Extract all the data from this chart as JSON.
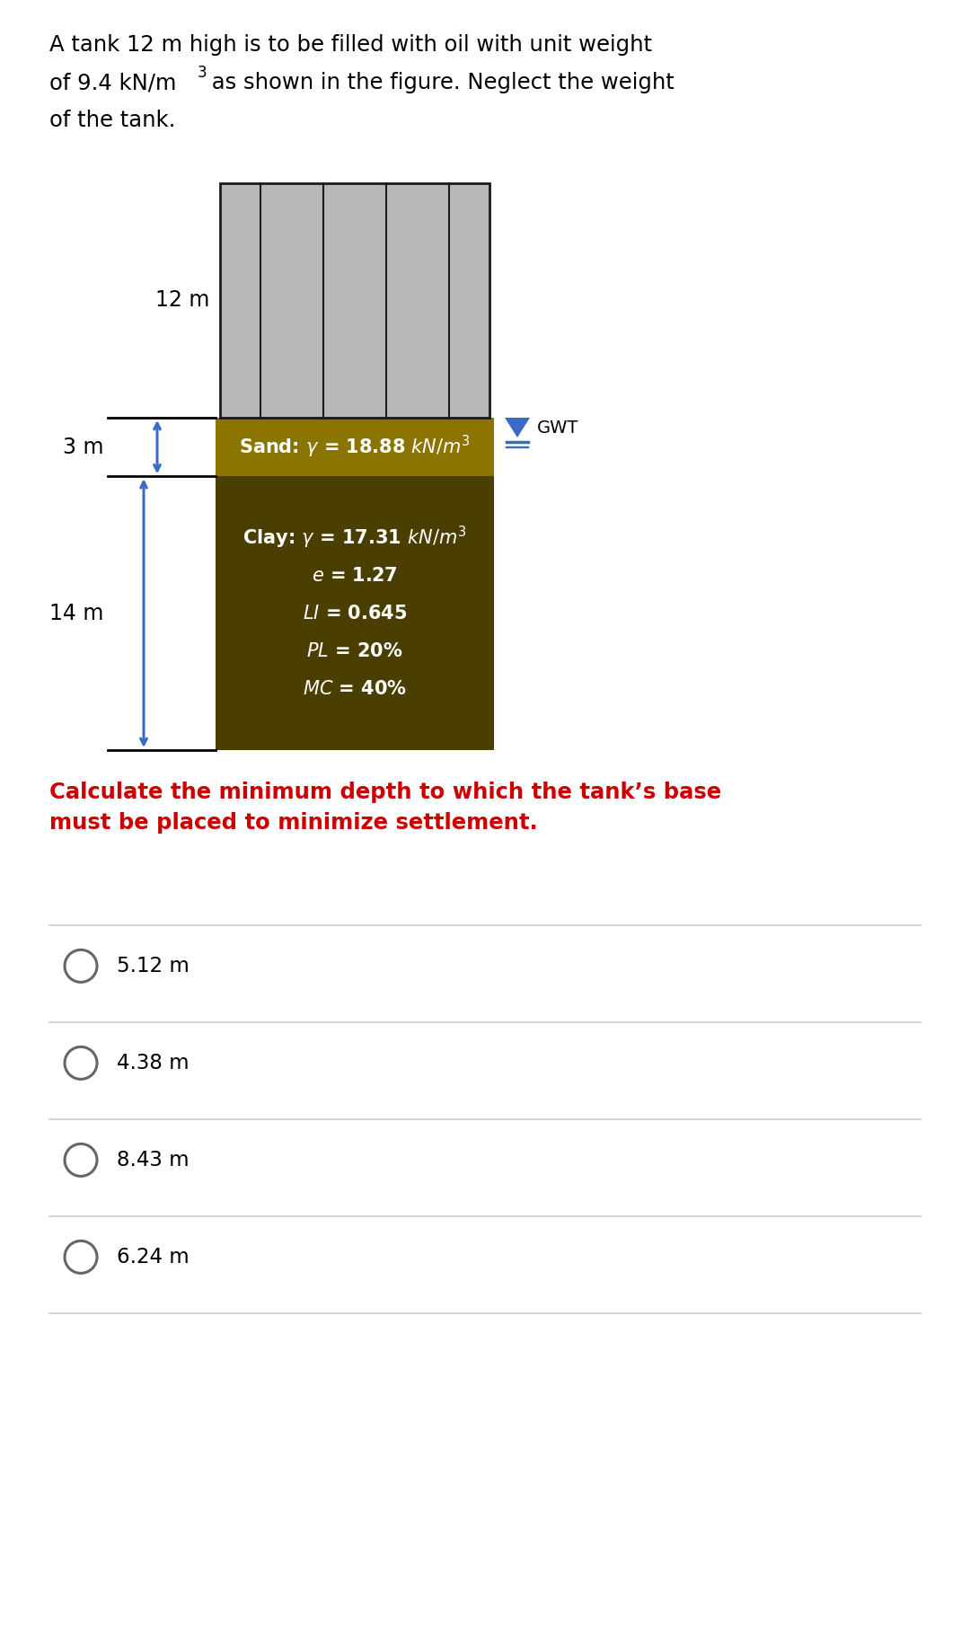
{
  "problem_text": "A tank 12 m high is to be filled with oil with unit weight\nof 9.4 kN/m³ as shown in the figure. Neglect the weight\nof the tank.",
  "question_text": "Calculate the minimum depth to which the tank’s base\nmust be placed to minimize settlement.",
  "choices": [
    "5.12 m",
    "4.38 m",
    "8.43 m",
    "6.24 m"
  ],
  "tank_label": "12 m",
  "sand_label": "Sand: $\\gamma$ = 18.88 $kN/m^3$",
  "clay_label": "Clay: $\\gamma$ = 17.31 $kN/m^3$",
  "clay_e": "$e$ = 1.27",
  "clay_LI": "$LI$ = 0.645",
  "clay_PL": "$PL$ = 20%",
  "clay_MC": "$MC$ = 40%",
  "sand_depth_label": "3 m",
  "clay_depth_label": "14 m",
  "gwt_label": "GWT",
  "bg_color": "#ffffff",
  "sand_color": "#8B7500",
  "clay_color": "#4A3F00",
  "tank_fill_color": "#b8b8b8",
  "tank_line_color": "#1a1a1a",
  "arrow_color": "#3a6bc4",
  "question_color": "#cc0000",
  "separator_color": "#cccccc",
  "choice_circle_color": "#666666"
}
